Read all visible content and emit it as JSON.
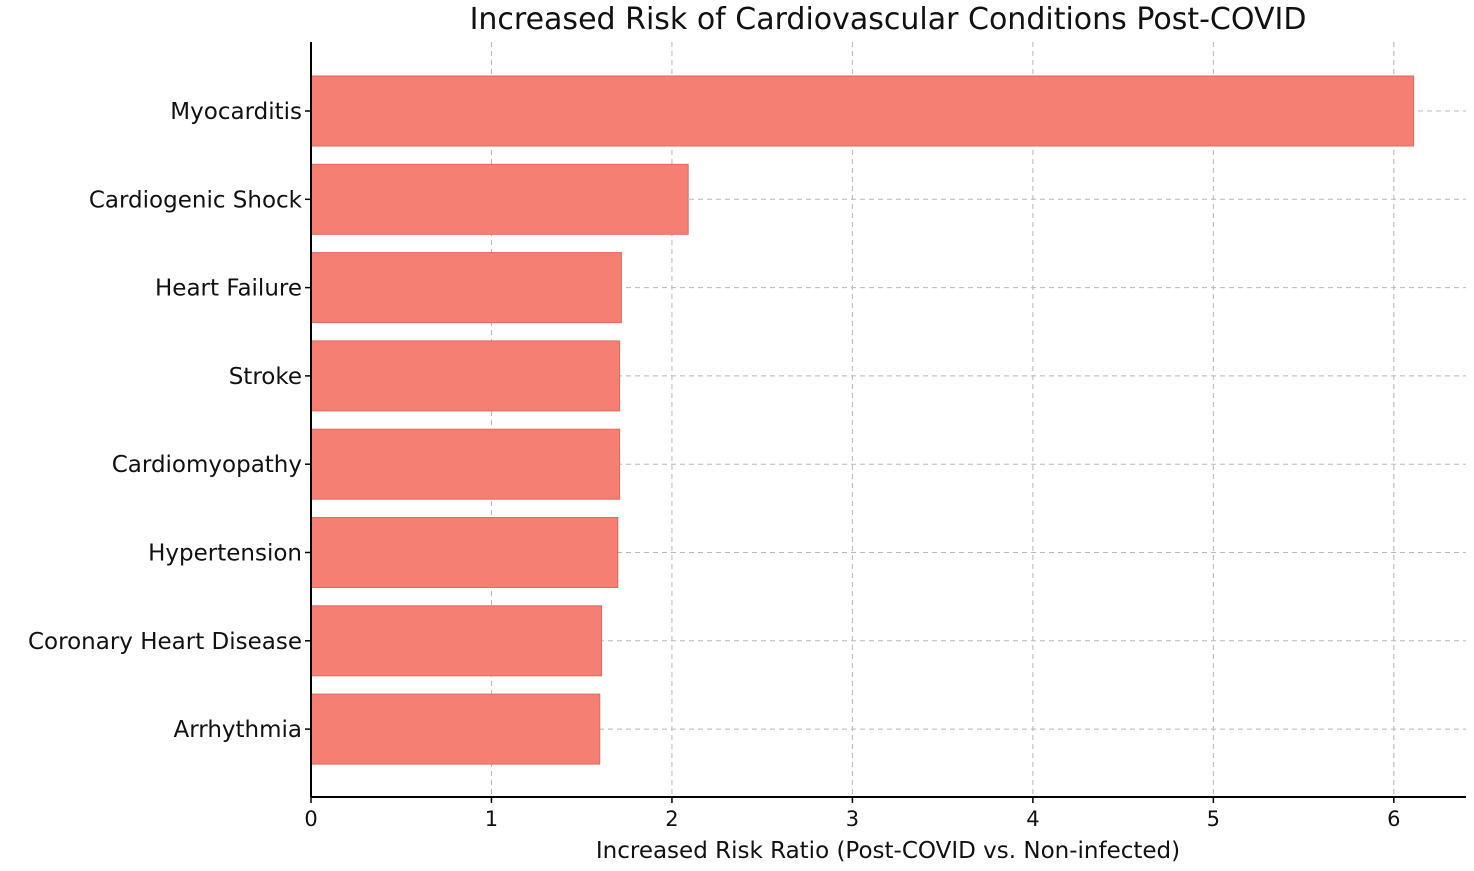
{
  "chart_data": {
    "type": "bar",
    "orientation": "horizontal",
    "title": "Increased Risk of Cardiovascular Conditions Post-COVID",
    "xlabel": "Increased Risk Ratio (Post-COVID vs. Non-infected)",
    "ylabel": "",
    "categories": [
      "Myocarditis",
      "Cardiogenic Shock",
      "Heart Failure",
      "Stroke",
      "Cardiomyopathy",
      "Hypertension",
      "Coronary Heart Disease",
      "Arrhythmia"
    ],
    "values": [
      6.11,
      2.09,
      1.72,
      1.71,
      1.71,
      1.7,
      1.61,
      1.6
    ],
    "xlim": [
      0,
      6.4
    ],
    "xticks": [
      "0",
      "1",
      "2",
      "3",
      "4",
      "5",
      "6"
    ],
    "grid": true,
    "bar_color": "#f47f72",
    "bar_edge_color": "#e06a5e"
  }
}
